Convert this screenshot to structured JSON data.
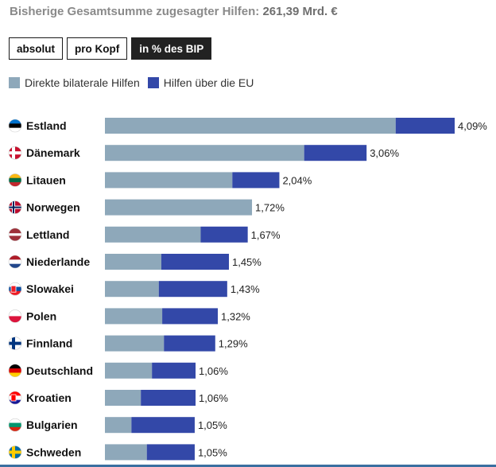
{
  "header": {
    "prefix": "Bisherige Gesamtsumme zugesagter Hilfen:",
    "total": "261,39 Mrd. €"
  },
  "toggles": [
    {
      "label": "absolut",
      "active": false
    },
    {
      "label": "pro Kopf",
      "active": false
    },
    {
      "label": "in % des BIP",
      "active": true
    }
  ],
  "colors": {
    "bilateral": "#8ea8ba",
    "eu": "#3348a8"
  },
  "chart_data": {
    "type": "bar",
    "orientation": "horizontal",
    "stacked": true,
    "unit": "% des BIP",
    "series": [
      {
        "name": "Direkte bilaterale Hilfen",
        "color": "#8ea8ba",
        "values": [
          3.4,
          2.33,
          1.49,
          1.72,
          1.12,
          0.66,
          0.63,
          0.67,
          0.69,
          0.55,
          0.42,
          0.31,
          0.49
        ]
      },
      {
        "name": "Hilfen über die EU",
        "color": "#3348a8",
        "values": [
          0.69,
          0.73,
          0.55,
          0.0,
          0.55,
          0.79,
          0.8,
          0.65,
          0.6,
          0.51,
          0.64,
          0.74,
          0.56
        ]
      }
    ],
    "categories": [
      "Estland",
      "Dänemark",
      "Litauen",
      "Norwegen",
      "Lettland",
      "Niederlande",
      "Slowakei",
      "Polen",
      "Finnland",
      "Deutschland",
      "Kroatien",
      "Bulgarien",
      "Schweden"
    ],
    "flags": [
      "flag-ee-icon",
      "flag-dk-icon",
      "flag-lt-icon",
      "flag-no-icon",
      "flag-lv-icon",
      "flag-nl-icon",
      "flag-sk-icon",
      "flag-pl-icon",
      "flag-fi-icon",
      "flag-de-icon",
      "flag-hr-icon",
      "flag-bg-icon",
      "flag-se-icon"
    ],
    "value_labels": [
      "4,09%",
      "3,06%",
      "2,04%",
      "1,72%",
      "1,67%",
      "1,45%",
      "1,43%",
      "1,32%",
      "1,29%",
      "1,06%",
      "1,06%",
      "1,05%",
      "1,05%"
    ],
    "xlim": [
      0,
      4.09
    ],
    "legend_position": "top-left",
    "grid": false
  }
}
